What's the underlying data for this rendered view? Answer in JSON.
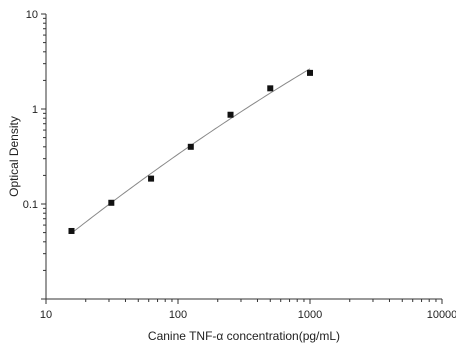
{
  "chart_data": {
    "type": "scatter",
    "title": "",
    "xlabel": "Canine TNF-α  concentration(pg/mL)",
    "ylabel": "Optical Density",
    "x_scale": "log",
    "y_scale": "log",
    "xlim": [
      10,
      10000
    ],
    "ylim": [
      0.01,
      10
    ],
    "x_ticks": [
      "10",
      "100",
      "1000",
      "10000"
    ],
    "y_ticks": [
      "10",
      "1",
      "0.1"
    ],
    "grid": false,
    "legend": "none",
    "fit_curve": true,
    "colors": {
      "points": "#111111",
      "curve": "#888888",
      "axis": "#333333"
    },
    "series": [
      {
        "x": [
          15.6,
          31.25,
          62.5,
          125,
          250,
          500,
          1000
        ],
        "y": [
          0.052,
          0.103,
          0.185,
          0.4,
          0.87,
          1.65,
          2.4
        ]
      }
    ]
  }
}
